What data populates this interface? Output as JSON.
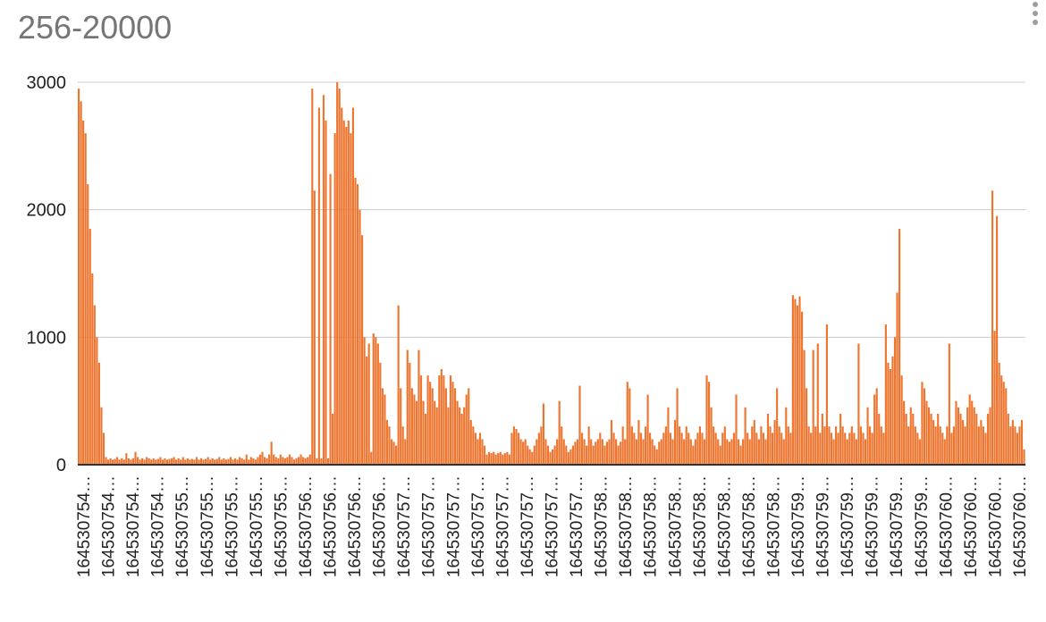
{
  "chart_data": {
    "type": "bar",
    "title": "256-20000",
    "xlabel": "",
    "ylabel": "",
    "ylim": [
      0,
      3000
    ],
    "y_ticks": [
      0,
      1000,
      2000,
      3000
    ],
    "grid": true,
    "legend": "none",
    "bar_color": "#ee7631",
    "x_tick_labels": [
      "164530754…",
      "164530754…",
      "164530754…",
      "164530754…",
      "164530755…",
      "164530755…",
      "164530755…",
      "164530755…",
      "164530755…",
      "164530756…",
      "164530756…",
      "164530756…",
      "164530756…",
      "164530757…",
      "164530757…",
      "164530757…",
      "164530757…",
      "164530757…",
      "164530757…",
      "164530757…",
      "164530757…",
      "164530758…",
      "164530758…",
      "164530758…",
      "164530758…",
      "164530758…",
      "164530758…",
      "164530758…",
      "164530758…",
      "164530759…",
      "164530759…",
      "164530759…",
      "164530759…",
      "164530759…",
      "164530759…",
      "164530760…",
      "164530760…",
      "164530760…",
      "164530760…"
    ],
    "values": [
      2950,
      2850,
      2700,
      2600,
      2200,
      1850,
      1500,
      1250,
      1000,
      800,
      450,
      250,
      60,
      40,
      50,
      40,
      45,
      60,
      40,
      50,
      40,
      90,
      50,
      40,
      50,
      100,
      60,
      40,
      50,
      40,
      60,
      50,
      40,
      50,
      40,
      45,
      60,
      40,
      50,
      40,
      45,
      50,
      60,
      40,
      50,
      40,
      60,
      40,
      50,
      40,
      45,
      40,
      60,
      40,
      50,
      40,
      45,
      60,
      40,
      50,
      40,
      45,
      60,
      40,
      50,
      40,
      45,
      60,
      40,
      50,
      40,
      60,
      50,
      40,
      80,
      40,
      60,
      50,
      40,
      60,
      80,
      100,
      60,
      50,
      80,
      180,
      80,
      60,
      50,
      80,
      60,
      50,
      60,
      80,
      60,
      40,
      50,
      60,
      80,
      60,
      50,
      60,
      80,
      2950,
      2150,
      50,
      2800,
      50,
      2900,
      2700,
      50,
      2280,
      400,
      2600,
      3000,
      2950,
      2800,
      2700,
      2650,
      2700,
      2600,
      2800,
      2250,
      2200,
      2000,
      1800,
      1000,
      850,
      950,
      100,
      1030,
      1000,
      950,
      800,
      600,
      550,
      350,
      300,
      200,
      180,
      150,
      1250,
      600,
      300,
      200,
      900,
      800,
      600,
      550,
      500,
      900,
      700,
      500,
      400,
      700,
      650,
      600,
      500,
      450,
      700,
      750,
      700,
      600,
      450,
      700,
      650,
      600,
      500,
      450,
      400,
      450,
      550,
      600,
      350,
      300,
      250,
      200,
      250,
      200,
      150,
      80,
      100,
      90,
      100,
      80,
      90,
      100,
      80,
      90,
      100,
      80,
      250,
      300,
      280,
      250,
      200,
      180,
      200,
      150,
      120,
      100,
      150,
      200,
      250,
      300,
      480,
      200,
      150,
      100,
      120,
      150,
      200,
      500,
      300,
      200,
      150,
      100,
      120,
      150,
      180,
      200,
      620,
      250,
      200,
      150,
      300,
      200,
      150,
      180,
      200,
      250,
      200,
      150,
      180,
      200,
      350,
      250,
      200,
      150,
      180,
      300,
      200,
      650,
      600,
      300,
      250,
      200,
      350,
      250,
      200,
      300,
      550,
      250,
      200,
      150,
      120,
      180,
      200,
      250,
      300,
      450,
      250,
      200,
      350,
      600,
      300,
      250,
      200,
      300,
      250,
      200,
      150,
      200,
      250,
      300,
      250,
      200,
      700,
      650,
      450,
      300,
      250,
      200,
      150,
      250,
      300,
      200,
      180,
      200,
      250,
      550,
      200,
      150,
      200,
      450,
      250,
      200,
      300,
      350,
      250,
      200,
      300,
      250,
      200,
      400,
      300,
      250,
      350,
      600,
      300,
      250,
      200,
      450,
      300,
      250,
      1330,
      1300,
      1250,
      1320,
      1200,
      900,
      600,
      300,
      250,
      900,
      300,
      950,
      250,
      400,
      300,
      1100,
      300,
      250,
      200,
      300,
      250,
      400,
      300,
      250,
      200,
      250,
      300,
      250,
      200,
      950,
      300,
      250,
      200,
      450,
      300,
      250,
      550,
      600,
      400,
      300,
      250,
      1100,
      800,
      750,
      850,
      1000,
      1350,
      1850,
      700,
      500,
      400,
      300,
      450,
      400,
      300,
      250,
      200,
      650,
      600,
      500,
      450,
      400,
      350,
      300,
      400,
      300,
      250,
      200,
      300,
      950,
      250,
      300,
      500,
      450,
      400,
      350,
      300,
      450,
      550,
      500,
      450,
      400,
      300,
      350,
      300,
      250,
      400,
      450,
      2150,
      1050,
      1950,
      800,
      700,
      650,
      600,
      400,
      300,
      350,
      300,
      250,
      300,
      350,
      120
    ]
  }
}
